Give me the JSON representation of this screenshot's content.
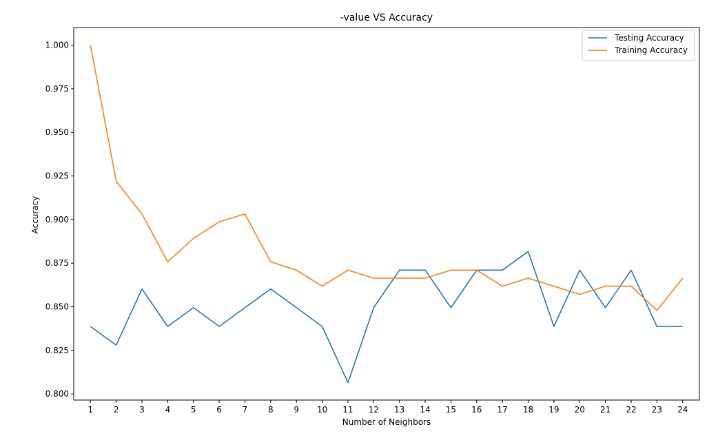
{
  "chart_data": {
    "type": "line",
    "title": "-value VS Accuracy",
    "xlabel": "Number of Neighbors",
    "ylabel": "Accuracy",
    "x": [
      1,
      2,
      3,
      4,
      5,
      6,
      7,
      8,
      9,
      10,
      11,
      12,
      13,
      14,
      15,
      16,
      17,
      18,
      19,
      20,
      21,
      22,
      23,
      24
    ],
    "xticks": [
      "1",
      "2",
      "3",
      "4",
      "5",
      "6",
      "7",
      "8",
      "9",
      "10",
      "11",
      "12",
      "13",
      "14",
      "15",
      "16",
      "17",
      "18",
      "19",
      "20",
      "21",
      "22",
      "23",
      "24"
    ],
    "yticks": [
      "0.800",
      "0.825",
      "0.850",
      "0.875",
      "0.900",
      "0.925",
      "0.950",
      "0.975",
      "1.000"
    ],
    "xlim": [
      0.35,
      24.65
    ],
    "ylim": [
      0.7965,
      1.0101
    ],
    "grid": false,
    "legend_position": "top-right",
    "series": [
      {
        "name": "Testing Accuracy",
        "color": "#1f77b4",
        "values": [
          0.8387,
          0.828,
          0.8602,
          0.8387,
          0.8495,
          0.8387,
          0.8495,
          0.8602,
          0.8495,
          0.8387,
          0.8065,
          0.8495,
          0.871,
          0.871,
          0.8495,
          0.871,
          0.871,
          0.8817,
          0.8387,
          0.871,
          0.8495,
          0.871,
          0.8387,
          0.8387
        ]
      },
      {
        "name": "Training Accuracy",
        "color": "#ff7f0e",
        "values": [
          1.0,
          0.922,
          0.9032,
          0.8757,
          0.8892,
          0.8987,
          0.9032,
          0.8757,
          0.871,
          0.8618,
          0.871,
          0.8664,
          0.8664,
          0.8664,
          0.871,
          0.871,
          0.8618,
          0.8664,
          0.8618,
          0.8571,
          0.8618,
          0.8618,
          0.8479,
          0.8664
        ]
      }
    ]
  }
}
